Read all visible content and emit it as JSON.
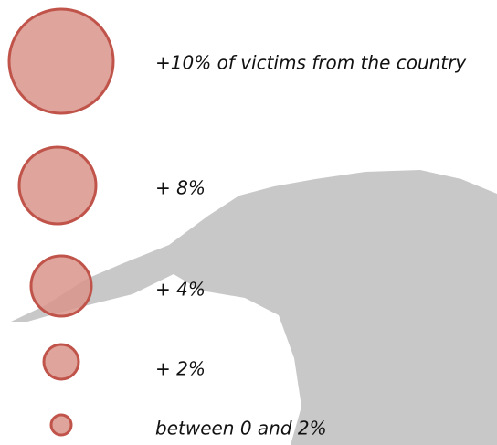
{
  "legend": {
    "items": [
      {
        "label": "+10% of victims from the country"
      },
      {
        "label": "+ 8%"
      },
      {
        "label": "+ 4%"
      },
      {
        "label": "+ 2%"
      },
      {
        "label": "between 0 and 2%"
      }
    ]
  }
}
